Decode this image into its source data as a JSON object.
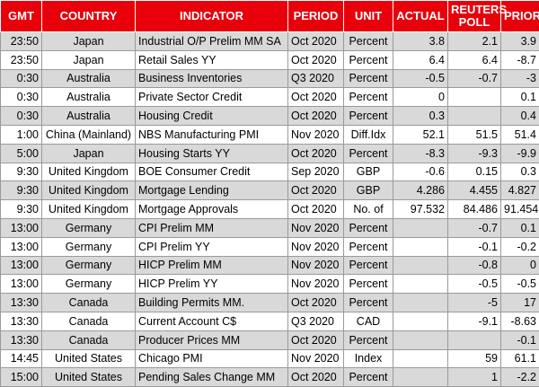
{
  "table": {
    "header": [
      "GMT",
      "COUNTRY",
      "INDICATOR",
      "PERIOD",
      "UNIT",
      "ACTUAL",
      "REUTERS POLL",
      "PRIOR"
    ],
    "rows": [
      [
        "23:50",
        "Japan",
        "Industrial O/P Prelim MM SA",
        "Oct 2020",
        "Percent",
        "3.8",
        "2.1",
        "3.9"
      ],
      [
        "23:50",
        "Japan",
        "Retail Sales YY",
        "Oct 2020",
        "Percent",
        "6.4",
        "6.4",
        "-8.7"
      ],
      [
        "0:30",
        "Australia",
        "Business Inventories",
        "Q3 2020",
        "Percent",
        "-0.5",
        "-0.7",
        "-3"
      ],
      [
        "0:30",
        "Australia",
        "Private Sector Credit",
        "Oct 2020",
        "Percent",
        "0",
        null,
        "0.1"
      ],
      [
        "0:30",
        "Australia",
        "Housing Credit",
        "Oct 2020",
        "Percent",
        "0.3",
        null,
        "0.4"
      ],
      [
        "1:00",
        "China (Mainland)",
        "NBS Manufacturing PMI",
        "Nov 2020",
        "Diff.Idx",
        "52.1",
        "51.5",
        "51.4"
      ],
      [
        "5:00",
        "Japan",
        "Housing Starts YY",
        "Oct 2020",
        "Percent",
        "-8.3",
        "-9.3",
        "-9.9"
      ],
      [
        "9:30",
        "United Kingdom",
        "BOE Consumer Credit",
        "Sep 2020",
        "GBP",
        "-0.6",
        "0.15",
        "0.3"
      ],
      [
        "9:30",
        "United Kingdom",
        "Mortgage Lending",
        "Oct 2020",
        "GBP",
        "4.286",
        "4.455",
        "4.827"
      ],
      [
        "9:30",
        "United Kingdom",
        "Mortgage Approvals",
        "Oct 2020",
        "No. of",
        "97.532",
        "84.486",
        "91.454"
      ],
      [
        "13:00",
        "Germany",
        "CPI Prelim MM",
        "Nov 2020",
        "Percent",
        null,
        "-0.7",
        "0.1"
      ],
      [
        "13:00",
        "Germany",
        "CPI Prelim YY",
        "Nov 2020",
        "Percent",
        null,
        "-0.1",
        "-0.2"
      ],
      [
        "13:00",
        "Germany",
        "HICP Prelim MM",
        "Nov 2020",
        "Percent",
        null,
        "-0.8",
        "0"
      ],
      [
        "13:00",
        "Germany",
        "HICP Prelim YY",
        "Nov 2020",
        "Percent",
        null,
        "-0.5",
        "-0.5"
      ],
      [
        "13:30",
        "Canada",
        "Building Permits MM.",
        "Oct 2020",
        "Percent",
        null,
        "-5",
        "17"
      ],
      [
        "13:30",
        "Canada",
        "Current Account C$",
        "Q3 2020",
        "CAD",
        null,
        "-9.1",
        "-8.63"
      ],
      [
        "13:30",
        "Canada",
        "Producer Prices MM",
        "Oct 2020",
        "Percent",
        null,
        null,
        "-0.1"
      ],
      [
        "14:45",
        "United States",
        "Chicago PMI",
        "Nov 2020",
        "Index",
        null,
        "59",
        "61.1"
      ],
      [
        "15:00",
        "United States",
        "Pending Sales Change MM",
        "Oct 2020",
        "Percent",
        null,
        "1",
        "-2.2"
      ]
    ]
  }
}
